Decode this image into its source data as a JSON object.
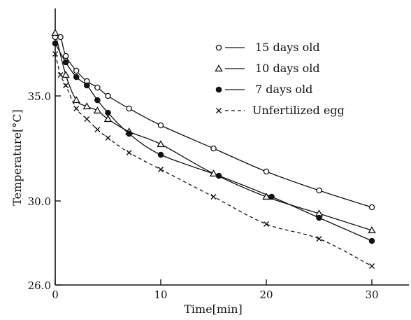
{
  "chart_data": {
    "type": "scatter",
    "xlabel": "Time[min]",
    "ylabel": "Temperature[°C]",
    "xlim": [
      0,
      33
    ],
    "ylim": [
      26.0,
      39.0
    ],
    "x_ticks": [
      0,
      10,
      20,
      30
    ],
    "y_ticks": [
      26.0,
      30.0,
      35.0
    ],
    "x_tick_labels": [
      "0",
      "10",
      "20",
      "30"
    ],
    "y_tick_labels": [
      "26.0",
      "30.0",
      "35.0"
    ],
    "legend_position": "top-right",
    "series": [
      {
        "name": "15 days old",
        "marker": "open-circle",
        "line": "solid",
        "x": [
          0,
          0.5,
          1,
          2,
          3,
          4,
          5,
          7,
          10,
          15,
          20,
          25,
          30
        ],
        "y": [
          37.8,
          37.8,
          36.9,
          36.2,
          35.7,
          35.4,
          35.0,
          34.4,
          33.6,
          32.5,
          31.4,
          30.5,
          29.7
        ]
      },
      {
        "name": "10 days old",
        "marker": "open-triangle",
        "line": "solid",
        "x": [
          0,
          1,
          2,
          3,
          4,
          5,
          7,
          10,
          15,
          20,
          25,
          30
        ],
        "y": [
          38.0,
          36.0,
          34.8,
          34.5,
          34.3,
          33.9,
          33.3,
          32.7,
          31.3,
          30.2,
          29.4,
          28.6
        ]
      },
      {
        "name": "7 days old",
        "marker": "filled-circle",
        "line": "solid",
        "x": [
          0,
          1,
          2,
          3,
          4,
          5,
          7,
          10,
          15.5,
          20.5,
          25,
          30
        ],
        "y": [
          37.5,
          36.6,
          35.9,
          35.5,
          34.8,
          34.2,
          33.2,
          32.2,
          31.2,
          30.2,
          29.2,
          28.1
        ]
      },
      {
        "name": "Unfertilized egg",
        "marker": "x",
        "line": "dashed",
        "x": [
          0,
          0.5,
          1,
          2,
          3,
          4,
          5,
          7,
          10,
          15,
          20,
          25,
          30
        ],
        "y": [
          37.0,
          36.0,
          35.5,
          34.4,
          33.9,
          33.4,
          33.0,
          32.3,
          31.5,
          30.2,
          28.9,
          28.2,
          26.9
        ]
      }
    ]
  }
}
